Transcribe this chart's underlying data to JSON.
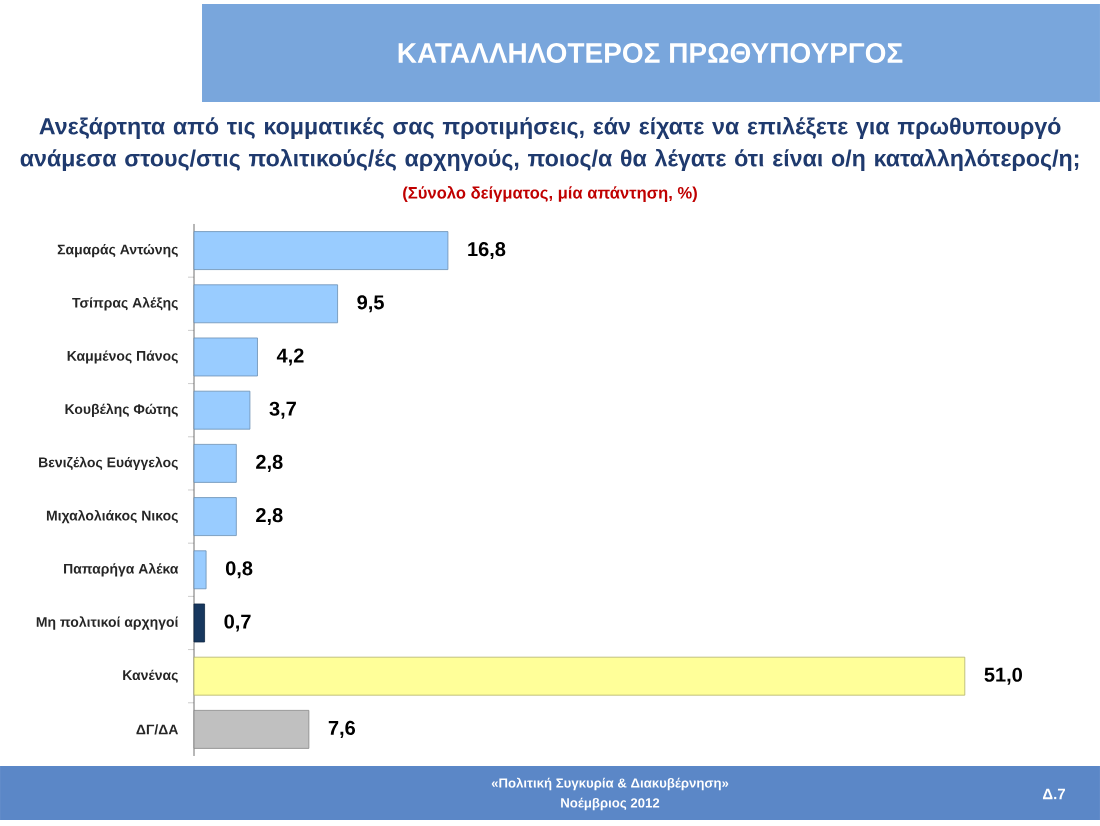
{
  "chart_data": {
    "type": "bar",
    "orientation": "horizontal",
    "title": "ΚΑΤΑΛΛΗΛΟΤΕΡΟΣ  ΠΡΩΘΥΠΟΥΡΓΟΣ",
    "subtitle": "Ανεξάρτητα από τις κομματικές σας προτιμήσεις, εάν είχατε να επιλέξετε για πρωθυπουργό ανάμεσα στους/στις πολιτικούς/ές αρχηγούς, ποιος/α θα λέγατε ότι είναι ο/η καταλληλότερος/η;",
    "categories": [
      "Σαμαράς Αντώνης",
      "Τσίπρας Αλέξης",
      "Καμμένος Πάνος",
      "Κουβέλης Φώτης",
      "Βενιζέλος Ευάγγελος",
      "Μιχαλολιάκος Νικος",
      "Παπαρήγα Αλέκα",
      "Μη πολιτικοί αρχηγοί",
      "Κανένας",
      "ΔΓ/ΔΑ"
    ],
    "values": [
      16.8,
      9.5,
      4.2,
      3.7,
      2.8,
      2.8,
      0.8,
      0.7,
      51.0,
      7.6
    ],
    "value_labels": [
      "16,8",
      "9,5",
      "4,2",
      "3,7",
      "2,8",
      "2,8",
      "0,8",
      "0,7",
      "51,0",
      "7,6"
    ],
    "colors": [
      "#99ccff",
      "#99ccff",
      "#99ccff",
      "#99ccff",
      "#99ccff",
      "#99ccff",
      "#99ccff",
      "#17375e",
      "#ffff99",
      "#c0c0c0"
    ],
    "tick_labels": "y",
    "annotations": [
      "(Σύνολο δείγματος, μία απάντηση, %)",
      "«Πολιτική Συγκυρία & Διακυβέρνηση»",
      "Νοέμβριος 2012",
      "Δ.7"
    ]
  }
}
